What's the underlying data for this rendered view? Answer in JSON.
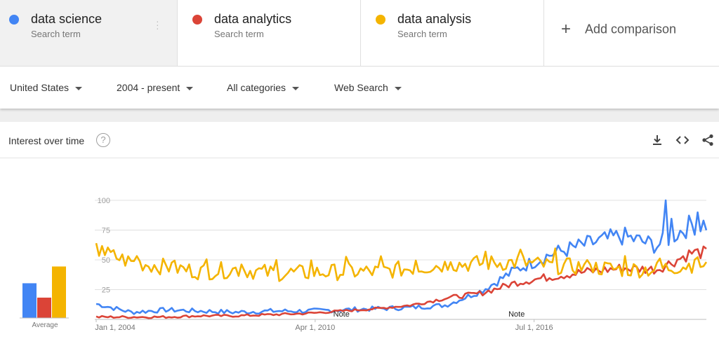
{
  "compare": {
    "terms": [
      {
        "name": "data science",
        "sub": "Search term",
        "color": "#4285f4"
      },
      {
        "name": "data analytics",
        "sub": "Search term",
        "color": "#db4437"
      },
      {
        "name": "data analysis",
        "sub": "Search term",
        "color": "#f4b400"
      }
    ],
    "add_label": "Add comparison"
  },
  "filters": {
    "region": "United States",
    "time": "2004 - present",
    "category": "All categories",
    "property": "Web Search"
  },
  "card": {
    "title": "Interest over time",
    "help": "?",
    "icons": [
      "download-icon",
      "embed-icon",
      "share-icon"
    ]
  },
  "chart_data": {
    "type": "line",
    "x_labels": [
      "Jan 1, 2004",
      "Apr 1, 2010",
      "Jul 1, 2016"
    ],
    "x_range": [
      "2004-01",
      "2021-06"
    ],
    "ylim": [
      0,
      100
    ],
    "yticks": [
      25,
      50,
      75,
      100
    ],
    "notes": [
      {
        "date": "2011-01",
        "label": "Note"
      },
      {
        "date": "2016-01",
        "label": "Note"
      }
    ],
    "average_label": "Average",
    "averages": [
      29,
      17,
      43
    ],
    "series_samples": {
      "dates": [
        "2004",
        "2005",
        "2006",
        "2007",
        "2008",
        "2009",
        "2010",
        "2011",
        "2012",
        "2013",
        "2014",
        "2015",
        "2016",
        "2017",
        "2018",
        "2019",
        "2020",
        "2021"
      ],
      "data science": [
        13,
        6,
        8,
        7,
        6,
        7,
        7,
        8,
        9,
        10,
        12,
        24,
        42,
        55,
        63,
        70,
        62,
        80
      ],
      "data analytics": [
        2,
        2,
        2,
        3,
        3,
        4,
        5,
        7,
        9,
        12,
        18,
        22,
        31,
        36,
        40,
        43,
        42,
        56
      ],
      "data analysis": [
        58,
        48,
        44,
        40,
        42,
        39,
        39,
        40,
        40,
        43,
        46,
        47,
        48,
        45,
        44,
        42,
        42,
        46
      ]
    }
  }
}
